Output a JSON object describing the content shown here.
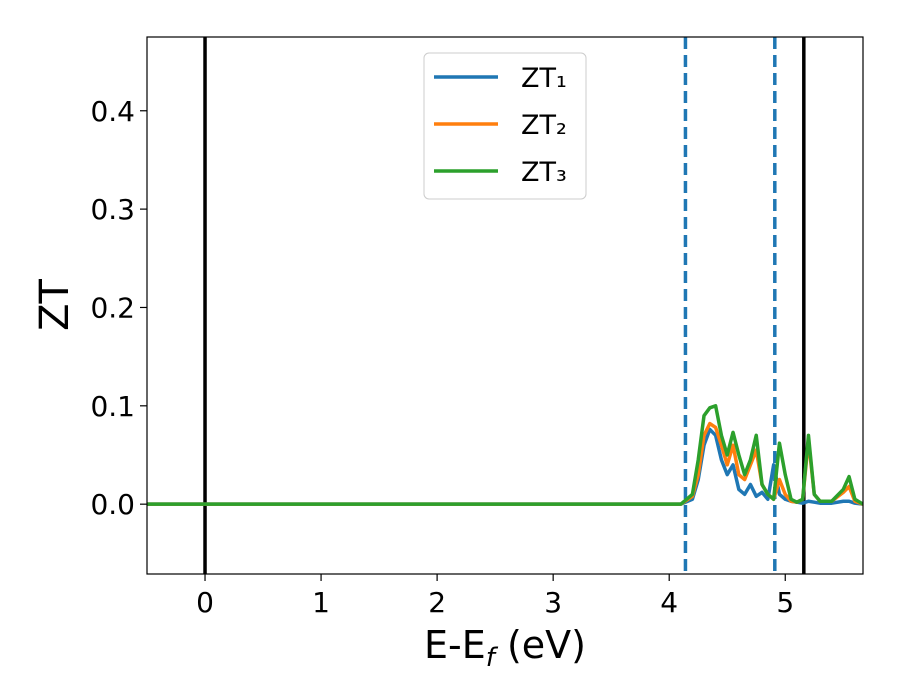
{
  "chart_data": {
    "type": "line",
    "ylabel": "ZT",
    "xlabel": [
      "E-E",
      "f",
      " (eV)"
    ],
    "x": [
      -0.5,
      4.0,
      4.1,
      4.2,
      4.25,
      4.3,
      4.35,
      4.4,
      4.45,
      4.5,
      4.55,
      4.6,
      4.65,
      4.7,
      4.75,
      4.8,
      4.85,
      4.9,
      4.95,
      5.0,
      5.05,
      5.1,
      5.15,
      5.2,
      5.25,
      5.3,
      5.4,
      5.5,
      5.55,
      5.6,
      5.67
    ],
    "series": [
      {
        "name": "ZT₁",
        "color": "#1f77b4",
        "values": [
          0,
          0,
          0,
          0.005,
          0.025,
          0.06,
          0.076,
          0.07,
          0.045,
          0.03,
          0.04,
          0.015,
          0.01,
          0.02,
          0.008,
          0.012,
          0.005,
          0.04,
          0.01,
          0.005,
          0.003,
          0.002,
          0.001,
          0.003,
          0.002,
          0.001,
          0.001,
          0.003,
          0.003,
          0.001,
          0
        ]
      },
      {
        "name": "ZT₂",
        "color": "#ff7f0e",
        "values": [
          0,
          0,
          0,
          0.008,
          0.03,
          0.07,
          0.082,
          0.078,
          0.06,
          0.04,
          0.06,
          0.03,
          0.025,
          0.04,
          0.055,
          0.02,
          0.01,
          0.005,
          0.025,
          0.01,
          0.003,
          0.002,
          0.005,
          0.065,
          0.01,
          0.003,
          0.003,
          0.012,
          0.018,
          0.003,
          0
        ]
      },
      {
        "name": "ZT₃",
        "color": "#2ca02c",
        "values": [
          0,
          0,
          0,
          0.01,
          0.045,
          0.09,
          0.098,
          0.1,
          0.07,
          0.05,
          0.073,
          0.05,
          0.03,
          0.045,
          0.07,
          0.02,
          0.01,
          0.005,
          0.062,
          0.03,
          0.005,
          0.002,
          0.005,
          0.07,
          0.01,
          0.003,
          0.003,
          0.015,
          0.028,
          0.005,
          0
        ]
      }
    ],
    "vlines": [
      {
        "x": 0,
        "color": "#000000",
        "style": "solid"
      },
      {
        "x": 5.16,
        "color": "#000000",
        "style": "solid"
      },
      {
        "x": 4.14,
        "color": "#1f77b4",
        "style": "dashed"
      },
      {
        "x": 4.91,
        "color": "#1f77b4",
        "style": "dashed"
      }
    ],
    "xlim": [
      -0.5,
      5.67
    ],
    "ylim": [
      -0.071,
      0.475
    ],
    "xticks": [
      0,
      1,
      2,
      3,
      4,
      5
    ],
    "yticks": [
      {
        "value": 0,
        "label": "0.0"
      },
      {
        "value": 0.1,
        "label": "0.1"
      },
      {
        "value": 0.2,
        "label": "0.2"
      },
      {
        "value": 0.3,
        "label": "0.3"
      },
      {
        "value": 0.4,
        "label": "0.4"
      }
    ],
    "legend": "upper center"
  }
}
